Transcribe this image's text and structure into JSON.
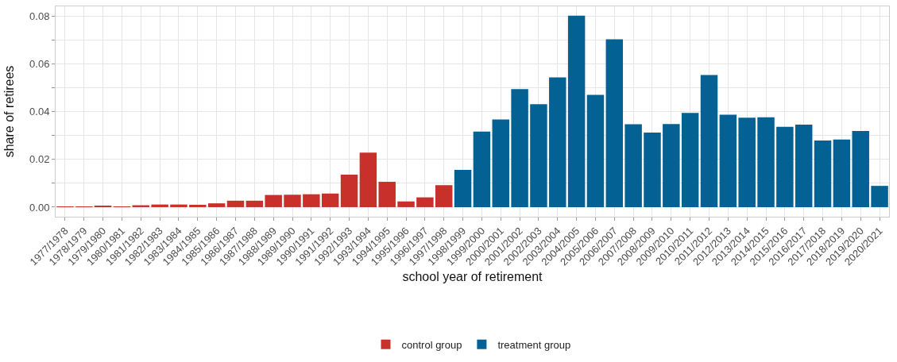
{
  "chart_data": {
    "type": "bar",
    "xlabel": "school year of retirement",
    "ylabel": "share of retirees",
    "categories": [
      "1977/1978",
      "1978/1979",
      "1979/1980",
      "1980/1981",
      "1981/1982",
      "1982/1983",
      "1983/1984",
      "1984/1985",
      "1985/1986",
      "1986/1987",
      "1987/1988",
      "1988/1989",
      "1989/1990",
      "1990/1991",
      "1991/1992",
      "1992/1993",
      "1993/1994",
      "1994/1995",
      "1995/1996",
      "1996/1997",
      "1997/1998",
      "1998/1999",
      "1999/2000",
      "2000/2001",
      "2001/2002",
      "2002/2003",
      "2003/2004",
      "2004/2005",
      "2005/2006",
      "2006/2007",
      "2007/2008",
      "2008/2009",
      "2009/2010",
      "2010/2011",
      "2011/2012",
      "2012/2013",
      "2013/2014",
      "2014/2015",
      "2015/2016",
      "2016/2017",
      "2017/2018",
      "2018/2019",
      "2019/2020",
      "2020/2021"
    ],
    "series": [
      {
        "name": "control group",
        "color": "#c8312b",
        "values": [
          0.0001,
          0.0002,
          0.0005,
          0.0003,
          0.0008,
          0.0011,
          0.0011,
          0.001,
          0.0016,
          0.0027,
          0.0027,
          0.0051,
          0.0052,
          0.0054,
          0.0057,
          0.0136,
          0.0228,
          0.0106,
          0.0024,
          0.0041,
          0.0092,
          null,
          null,
          null,
          null,
          null,
          null,
          null,
          null,
          null,
          null,
          null,
          null,
          null,
          null,
          null,
          null,
          null,
          null,
          null,
          null,
          null,
          null,
          null
        ]
      },
      {
        "name": "treatment group",
        "color": "#036194",
        "values": [
          null,
          null,
          null,
          null,
          null,
          null,
          null,
          null,
          null,
          null,
          null,
          null,
          null,
          null,
          null,
          null,
          null,
          null,
          null,
          null,
          null,
          0.0156,
          0.0316,
          0.0367,
          0.0494,
          0.0431,
          0.0543,
          0.0801,
          0.047,
          0.0702,
          0.0347,
          0.0312,
          0.0348,
          0.0394,
          0.0553,
          0.0387,
          0.0374,
          0.0376,
          0.0336,
          0.0345,
          0.0279,
          0.0283,
          0.0319,
          0.0089
        ]
      }
    ],
    "ylim": [
      -0.004,
      0.084
    ],
    "yticks": [
      {
        "value": 0,
        "label": "0.00"
      },
      {
        "value": 0.01,
        "label": null
      },
      {
        "value": 0.02,
        "label": "0.02"
      },
      {
        "value": 0.03,
        "label": null
      },
      {
        "value": 0.04,
        "label": "0.04"
      },
      {
        "value": 0.05,
        "label": null
      },
      {
        "value": 0.06,
        "label": "0.06"
      },
      {
        "value": 0.07,
        "label": null
      },
      {
        "value": 0.08,
        "label": "0.08"
      }
    ],
    "grid": true,
    "legend": "bottom"
  }
}
